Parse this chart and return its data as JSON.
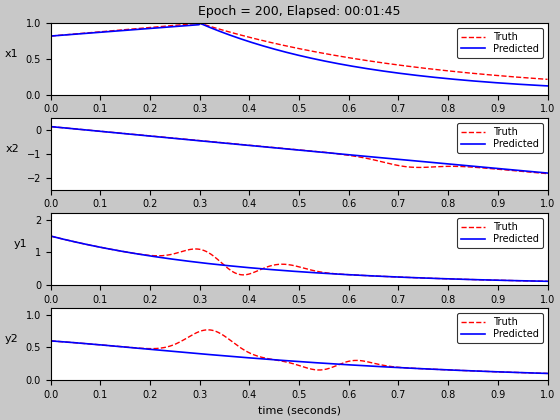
{
  "title": "Epoch = 200, Elapsed: 00:01:45",
  "xlabel": "time (seconds)",
  "ylabels": [
    "x1",
    "x2",
    "y1",
    "y2"
  ],
  "legend_labels": [
    "Truth",
    "Predicted"
  ],
  "truth_color": "#FF0000",
  "predicted_color": "#0000FF",
  "truth_linestyle": "--",
  "predicted_linestyle": "-",
  "truth_linewidth": 1.0,
  "predicted_linewidth": 1.2,
  "bg_color": "#C8C8C8",
  "axes_bg_color": "#FFFFFF",
  "xlim": [
    0,
    1
  ],
  "xticks": [
    0,
    0.1,
    0.2,
    0.3,
    0.4,
    0.5,
    0.6,
    0.7,
    0.8,
    0.9,
    1.0
  ],
  "n_points": 500,
  "title_fontsize": 9,
  "label_fontsize": 8,
  "tick_fontsize": 7,
  "legend_fontsize": 7
}
